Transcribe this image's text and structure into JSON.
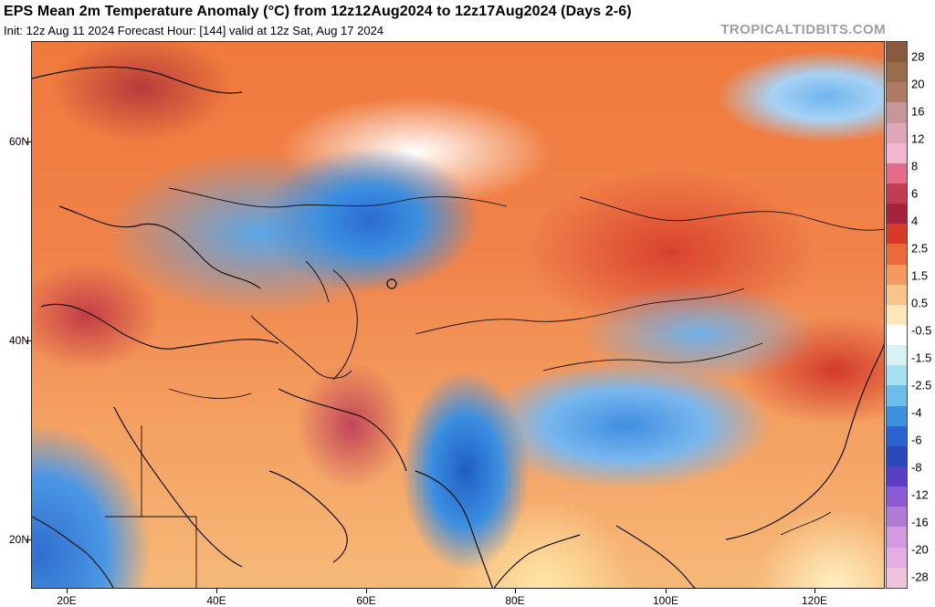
{
  "header": {
    "title": "EPS Mean 2m Temperature Anomaly (°C) from 12z12Aug2024 to 12z17Aug2024 (Days 2-6)",
    "subtitle": "Init: 12z Aug 11 2024   Forecast Hour: [144]   valid at 12z Sat, Aug 17 2024",
    "brand": "TROPICALTIDBITS.COM"
  },
  "axes": {
    "latitude_labels": [
      {
        "text": "60N"
      },
      {
        "text": "40N"
      },
      {
        "text": "20N"
      }
    ],
    "longitude_labels": [
      {
        "text": "20E"
      },
      {
        "text": "40E"
      },
      {
        "text": "60E"
      },
      {
        "text": "80E"
      },
      {
        "text": "100E"
      },
      {
        "text": "120E"
      }
    ]
  },
  "colorbar": {
    "segments": [
      {
        "color": "#8b5a3c"
      },
      {
        "color": "#9b6b4e"
      },
      {
        "color": "#b07a66"
      },
      {
        "color": "#c7959a"
      },
      {
        "color": "#e0a6b8"
      },
      {
        "color": "#f4b6ce"
      },
      {
        "color": "#e56b8a"
      },
      {
        "color": "#c23c54"
      },
      {
        "color": "#a4253b"
      },
      {
        "color": "#d83a26"
      },
      {
        "color": "#ec6a3a"
      },
      {
        "color": "#f59a5c"
      },
      {
        "color": "#f8c48a"
      },
      {
        "color": "#fde7b8"
      },
      {
        "color": "#ffffff"
      },
      {
        "color": "#d8f2f4"
      },
      {
        "color": "#a6e0f0"
      },
      {
        "color": "#6cbcec"
      },
      {
        "color": "#3d8fe0"
      },
      {
        "color": "#2a64d0"
      },
      {
        "color": "#2a48b8"
      },
      {
        "color": "#5a3ec4"
      },
      {
        "color": "#8c5ad4"
      },
      {
        "color": "#b27ad4"
      },
      {
        "color": "#d29ae0"
      },
      {
        "color": "#e4aee2"
      },
      {
        "color": "#f0c4da"
      }
    ],
    "labels": [
      "28",
      "20",
      "16",
      "12",
      "8",
      "6",
      "4",
      "2.5",
      "1.5",
      "0.5",
      "-0.5",
      "-1.5",
      "-2.5",
      "-4",
      "-6",
      "-8",
      "-12",
      "-16",
      "-20",
      "-28"
    ]
  }
}
